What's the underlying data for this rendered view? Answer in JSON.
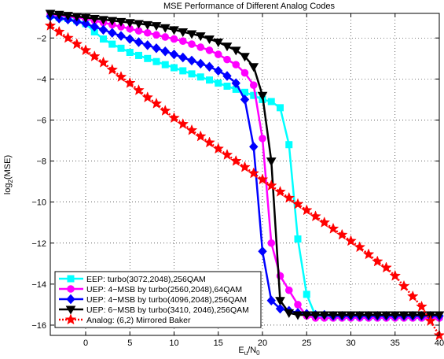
{
  "chart_data": {
    "type": "line",
    "title": "MSE Performance of Different Analog Codes",
    "xlabel": {
      "base": "E",
      "base_sub": "u",
      "slash": "/N",
      "slash_sub": "0"
    },
    "ylabel": {
      "base": "log",
      "base_sub": "2",
      "rest": "(MSE)"
    },
    "xlim": [
      -4,
      40
    ],
    "ylim": [
      -16.5,
      -0.8
    ],
    "xticks": [
      0,
      5,
      10,
      15,
      20,
      25,
      30,
      35,
      40
    ],
    "yticks": [
      -2,
      -4,
      -6,
      -8,
      -10,
      -12,
      -14,
      -16
    ],
    "grid": true,
    "legend_position": "bottom-left",
    "series": [
      {
        "name": "EEP: turbo(3072,2048),256QAM",
        "color": "#00ffff",
        "marker": "square",
        "x": [
          -4,
          -3,
          -2,
          -1,
          0,
          1,
          2,
          3,
          4,
          5,
          6,
          7,
          8,
          9,
          10,
          11,
          12,
          13,
          14,
          15,
          16,
          17,
          18,
          19,
          20,
          21,
          22,
          23,
          24,
          25,
          26,
          27,
          28,
          29,
          30,
          31,
          32,
          33,
          34,
          35,
          36,
          37,
          38,
          39,
          40
        ],
        "y": [
          -0.9,
          -1.0,
          -1.05,
          -1.15,
          -1.3,
          -1.7,
          -2.05,
          -2.3,
          -2.5,
          -2.7,
          -2.85,
          -3.0,
          -3.15,
          -3.3,
          -3.45,
          -3.6,
          -3.75,
          -3.9,
          -4.05,
          -4.2,
          -4.35,
          -4.5,
          -4.65,
          -4.8,
          -5.0,
          -5.1,
          -5.4,
          -7.2,
          -11.8,
          -14.5,
          -15.55,
          -15.6,
          -15.6,
          -15.6,
          -15.6,
          -15.6,
          -15.6,
          -15.6,
          -15.6,
          -15.6,
          -15.6,
          -15.6,
          -15.6,
          -15.6,
          -15.6
        ]
      },
      {
        "name": "UEP: 4−MSB by turbo(2560,2048),64QAM",
        "color": "#ff00ff",
        "marker": "circle",
        "x": [
          -4,
          -3,
          -2,
          -1,
          0,
          1,
          2,
          3,
          4,
          5,
          6,
          7,
          8,
          9,
          10,
          11,
          12,
          13,
          14,
          15,
          16,
          17,
          18,
          19,
          20,
          21,
          22,
          23,
          24,
          25,
          26,
          27,
          28,
          29,
          30,
          31,
          32,
          33,
          34,
          35,
          36,
          37,
          38,
          39,
          40
        ],
        "y": [
          -0.85,
          -0.9,
          -0.95,
          -1.0,
          -1.05,
          -1.15,
          -1.25,
          -1.35,
          -1.45,
          -1.55,
          -1.65,
          -1.75,
          -1.85,
          -1.95,
          -2.05,
          -2.15,
          -2.3,
          -2.45,
          -2.6,
          -2.8,
          -3.05,
          -3.3,
          -3.7,
          -4.3,
          -6.9,
          -12.0,
          -13.6,
          -14.3,
          -15.0,
          -15.55,
          -15.65,
          -15.65,
          -15.65,
          -15.65,
          -15.65,
          -15.65,
          -15.65,
          -15.65,
          -15.65,
          -15.65,
          -15.65,
          -15.65,
          -15.65,
          -15.65,
          -15.65
        ]
      },
      {
        "name": "UEP: 4−MSB by turbo(4096,2048),256QAM",
        "color": "#0000ff",
        "marker": "diamond",
        "x": [
          -4,
          -3,
          -2,
          -1,
          0,
          1,
          2,
          3,
          4,
          5,
          6,
          7,
          8,
          9,
          10,
          11,
          12,
          13,
          14,
          15,
          16,
          17,
          18,
          19,
          20,
          21,
          22,
          23,
          24,
          25,
          26,
          27,
          28,
          29,
          30,
          31,
          32,
          33,
          34,
          35,
          36,
          37,
          38,
          39,
          40
        ],
        "y": [
          -0.95,
          -1.05,
          -1.1,
          -1.2,
          -1.3,
          -1.45,
          -1.6,
          -1.75,
          -1.9,
          -2.05,
          -2.2,
          -2.35,
          -2.5,
          -2.65,
          -2.8,
          -2.95,
          -3.1,
          -3.25,
          -3.4,
          -3.6,
          -3.85,
          -4.2,
          -5.0,
          -7.3,
          -12.4,
          -14.8,
          -15.2,
          -15.3,
          -15.4,
          -15.45,
          -15.5,
          -15.5,
          -15.55,
          -15.55,
          -15.55,
          -15.55,
          -15.55,
          -15.55,
          -15.55,
          -15.55,
          -15.55,
          -15.55,
          -15.55,
          -15.55,
          -15.55
        ]
      },
      {
        "name": "UEP: 6−MSB by turbo(3410, 2046),256QAM",
        "color": "#000000",
        "marker": "triangle-down",
        "x": [
          -4,
          -3,
          -2,
          -1,
          0,
          1,
          2,
          3,
          4,
          5,
          6,
          7,
          8,
          9,
          10,
          11,
          12,
          13,
          14,
          15,
          16,
          17,
          18,
          19,
          20,
          21,
          22,
          23,
          24,
          25,
          26,
          27,
          28,
          29,
          30,
          31,
          32,
          33,
          34,
          35,
          36,
          37,
          38,
          39,
          40
        ],
        "y": [
          -0.8,
          -0.85,
          -0.9,
          -0.95,
          -1.0,
          -1.05,
          -1.1,
          -1.15,
          -1.2,
          -1.25,
          -1.3,
          -1.35,
          -1.4,
          -1.5,
          -1.6,
          -1.7,
          -1.8,
          -1.9,
          -2.05,
          -2.2,
          -2.4,
          -2.6,
          -2.9,
          -3.4,
          -4.8,
          -8.0,
          -14.8,
          -15.4,
          -15.5,
          -15.5,
          -15.5,
          -15.5,
          -15.5,
          -15.5,
          -15.5,
          -15.5,
          -15.5,
          -15.5,
          -15.5,
          -15.5,
          -15.5,
          -15.5,
          -15.5,
          -15.5,
          -15.5
        ]
      },
      {
        "name": "Analog: (6,2) Mirrored Baker",
        "color": "#ff0000",
        "marker": "star",
        "x": [
          -4,
          -3,
          -2,
          -1,
          0,
          1,
          2,
          3,
          4,
          5,
          6,
          7,
          8,
          9,
          10,
          11,
          12,
          13,
          14,
          15,
          16,
          17,
          18,
          19,
          20,
          21,
          22,
          23,
          24,
          25,
          26,
          27,
          28,
          29,
          30,
          31,
          32,
          33,
          34,
          35,
          36,
          37,
          38,
          39,
          40
        ],
        "y": [
          -1.4,
          -1.7,
          -2.0,
          -2.3,
          -2.6,
          -2.9,
          -3.2,
          -3.55,
          -3.9,
          -4.2,
          -4.55,
          -4.9,
          -5.2,
          -5.55,
          -5.9,
          -6.2,
          -6.5,
          -6.8,
          -7.1,
          -7.4,
          -7.7,
          -8.0,
          -8.3,
          -8.6,
          -8.9,
          -9.2,
          -9.5,
          -9.8,
          -10.1,
          -10.4,
          -10.7,
          -11.0,
          -11.3,
          -11.6,
          -11.9,
          -12.2,
          -12.55,
          -12.9,
          -13.2,
          -13.6,
          -14.1,
          -14.6,
          -15.1,
          -15.8,
          -16.5
        ]
      }
    ]
  }
}
